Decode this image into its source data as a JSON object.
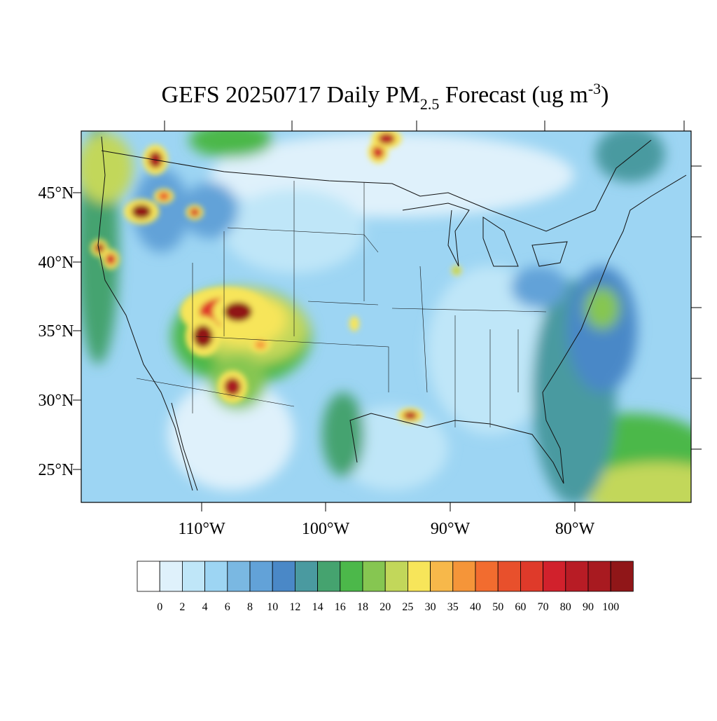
{
  "map": {
    "title": {
      "main": "GEFS 20250717 Daily PM",
      "sub": "2.5",
      "rest": " Forecast (ug m",
      "sup": "-3",
      "end": ")"
    },
    "lat_labels": [
      "45°N",
      "40°N",
      "35°N",
      "30°N",
      "25°N"
    ],
    "lon_labels": [
      "110°W",
      "100°W",
      "90°W",
      "80°W"
    ],
    "colorbar": {
      "levels": [
        0,
        2,
        4,
        6,
        8,
        10,
        12,
        14,
        16,
        18,
        20,
        25,
        30,
        35,
        40,
        50,
        60,
        70,
        80,
        90,
        100
      ],
      "colors": [
        "#ffffff",
        "#dff1fb",
        "#bfe6f8",
        "#9dd5f3",
        "#7ab8e2",
        "#62a2d8",
        "#4a88c7",
        "#4a9aa0",
        "#45a36f",
        "#4cb84a",
        "#86c651",
        "#c2d75a",
        "#f7e55a",
        "#f7b84a",
        "#f59539",
        "#f26c2f",
        "#e8502c",
        "#df3a2a",
        "#d1212c",
        "#b81c25",
        "#a81a20",
        "#901618"
      ]
    }
  }
}
